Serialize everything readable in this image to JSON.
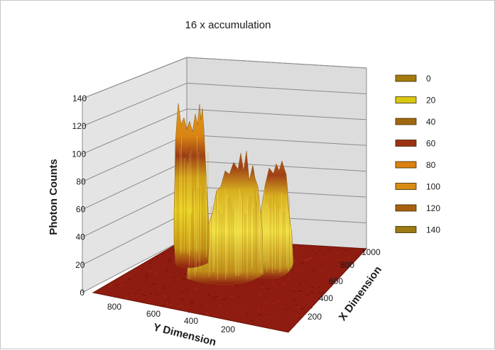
{
  "chart_data": {
    "type": "surface",
    "title": "16 x accumulation",
    "zlabel": "Photon Counts",
    "xlabel": "X Dimension",
    "ylabel": "Y Dimension",
    "z_ticks": [
      "0",
      "20",
      "40",
      "60",
      "80",
      "100",
      "120",
      "140"
    ],
    "zlim": [
      0,
      140
    ],
    "x_ticks": [
      "200",
      "400",
      "600",
      "800",
      "1000"
    ],
    "xlim": [
      0,
      1000
    ],
    "y_ticks": [
      "200",
      "400",
      "600",
      "800"
    ],
    "ylim": [
      0,
      1000
    ],
    "legend": [
      {
        "label": "0",
        "color": "#a57a0e"
      },
      {
        "label": "20",
        "color": "#d9c810"
      },
      {
        "label": "40",
        "color": "#a0680f"
      },
      {
        "label": "60",
        "color": "#9c3214"
      },
      {
        "label": "80",
        "color": "#dc8010"
      },
      {
        "label": "100",
        "color": "#d88c14"
      },
      {
        "label": "120",
        "color": "#a86010"
      },
      {
        "label": "140",
        "color": "#9c7a14"
      }
    ],
    "legend_position": "right",
    "floor_color": "#8e1c10",
    "peaks": [
      {
        "name": "left-spike",
        "y": 800,
        "x": 520,
        "z": 135
      },
      {
        "name": "middle-mound",
        "y": 500,
        "x": 560,
        "z": 105
      },
      {
        "name": "right-mound",
        "y": 330,
        "x": 600,
        "z": 100
      }
    ]
  }
}
